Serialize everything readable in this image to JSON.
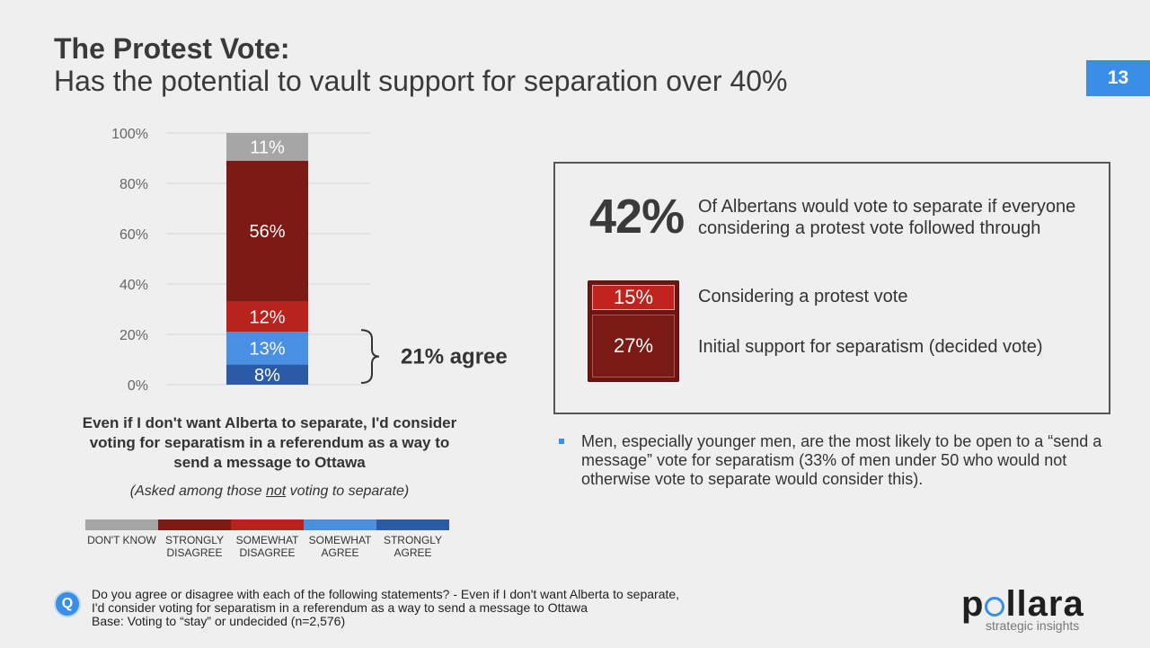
{
  "header": {
    "title_bold": "The Protest Vote:",
    "title_sub": "Has the potential to vault support for separation over 40%",
    "page_number": "13"
  },
  "chart_data": {
    "type": "bar",
    "stacked": true,
    "categories": [
      ""
    ],
    "ylim": [
      0,
      100
    ],
    "y_ticks": [
      "0%",
      "20%",
      "40%",
      "60%",
      "80%",
      "100%"
    ],
    "grid": true,
    "series": [
      {
        "name": "STRONGLY AGREE",
        "values": [
          8
        ],
        "label": "8%",
        "color": "#2b5aa6"
      },
      {
        "name": "SOMEWHAT AGREE",
        "values": [
          13
        ],
        "label": "13%",
        "color": "#4a90e2"
      },
      {
        "name": "SOMEWHAT DISAGREE",
        "values": [
          12
        ],
        "label": "12%",
        "color": "#b8231d"
      },
      {
        "name": "STRONGLY DISAGREE",
        "values": [
          56
        ],
        "label": "56%",
        "color": "#7d1a14"
      },
      {
        "name": "DON'T KNOW",
        "values": [
          11
        ],
        "label": "11%",
        "color": "#a6a6a6"
      }
    ],
    "annotation": "21% agree"
  },
  "question": {
    "label": "Even if I don't want Alberta to separate, I'd consider voting for separatism in a referendum as a way to send a message to Ottawa",
    "note_before": "(Asked among those ",
    "note_emph": "not",
    "note_after": " voting to separate)"
  },
  "legend": [
    {
      "line1": "DON'T KNOW",
      "line2": "",
      "color": "#a6a6a6"
    },
    {
      "line1": "STRONGLY",
      "line2": "DISAGREE",
      "color": "#7d1a14"
    },
    {
      "line1": "SOMEWHAT",
      "line2": "DISAGREE",
      "color": "#b8231d"
    },
    {
      "line1": "SOMEWHAT",
      "line2": "AGREE",
      "color": "#4a90e2"
    },
    {
      "line1": "STRONGLY",
      "line2": "AGREE",
      "color": "#2b5aa6"
    }
  ],
  "callout": {
    "big_pct": "42%",
    "big_desc": "Of Albertans would vote to separate if everyone considering a protest vote followed through",
    "stack_top_value": "15%",
    "stack_top_label": "Considering a protest vote",
    "stack_bottom_value": "27%",
    "stack_bottom_label": "Initial support for separatism (decided vote)"
  },
  "bullet": {
    "text": "Men, especially younger men, are the most likely to be open to a “send a message” vote for separatism (33% of men under 50 who would not otherwise vote to separate would consider this)."
  },
  "footer": {
    "question_line1": "Do you agree or disagree with each of the following statements? - Even if I don't want Alberta to separate,",
    "question_line2": "I'd consider voting for separatism in a referendum as a way to send a message to Ottawa",
    "base": "Base: Voting to “stay” or undecided (n=2,576)",
    "q_icon": "Q"
  },
  "logo": {
    "text_before": "p",
    "text_after": "llara",
    "tagline": "strategic insights"
  }
}
